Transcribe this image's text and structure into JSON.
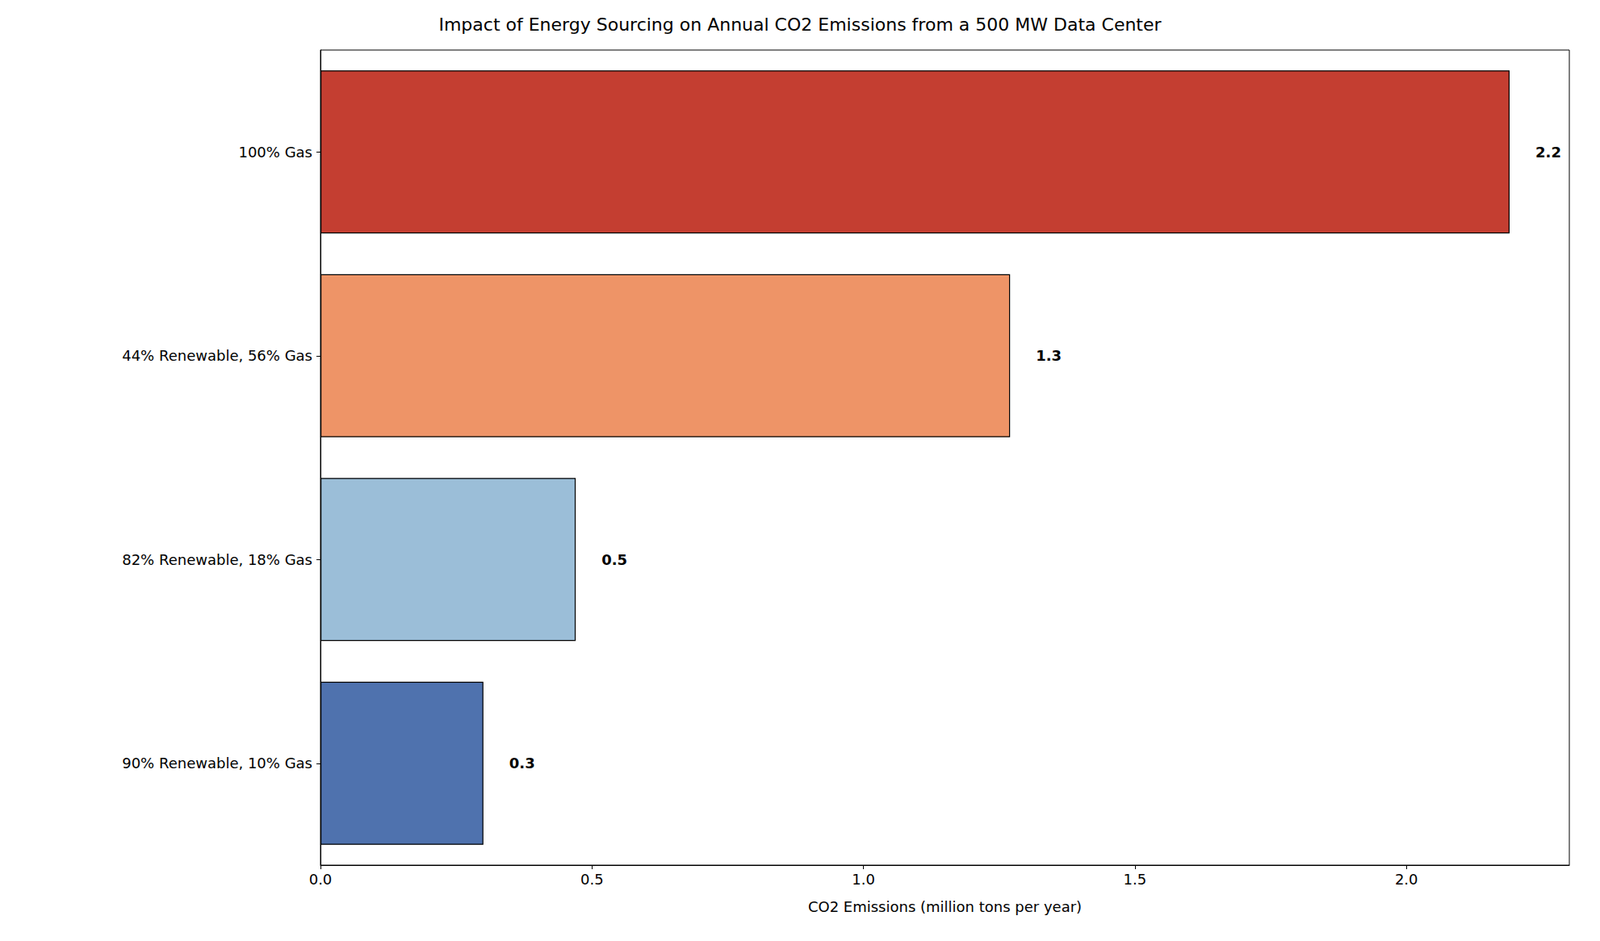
{
  "chart_data": {
    "type": "bar",
    "orientation": "horizontal",
    "title": "Impact of Energy Sourcing on Annual CO2 Emissions from a 500 MW Data Center",
    "x_label": "CO2 Emissions (million tons per year)",
    "categories": [
      "100% Gas",
      "44% Renewable, 56% Gas",
      "82% Renewable, 18% Gas",
      "90% Renewable, 10% Gas"
    ],
    "values": [
      2.19,
      1.27,
      0.47,
      0.3
    ],
    "value_labels": [
      "2.2",
      "1.3",
      "0.5",
      "0.3"
    ],
    "colors": [
      "#c43e31",
      "#ee9467",
      "#9bbed8",
      "#4f72ae"
    ],
    "xlim": [
      0,
      2.3
    ],
    "xticks": [
      {
        "value": 0,
        "label": "0.0"
      },
      0.5,
      {
        "value": 1,
        "label": "1.0"
      },
      1.5,
      {
        "value": 2,
        "label": "2.0"
      }
    ],
    "grid": false,
    "data_labels": true
  }
}
